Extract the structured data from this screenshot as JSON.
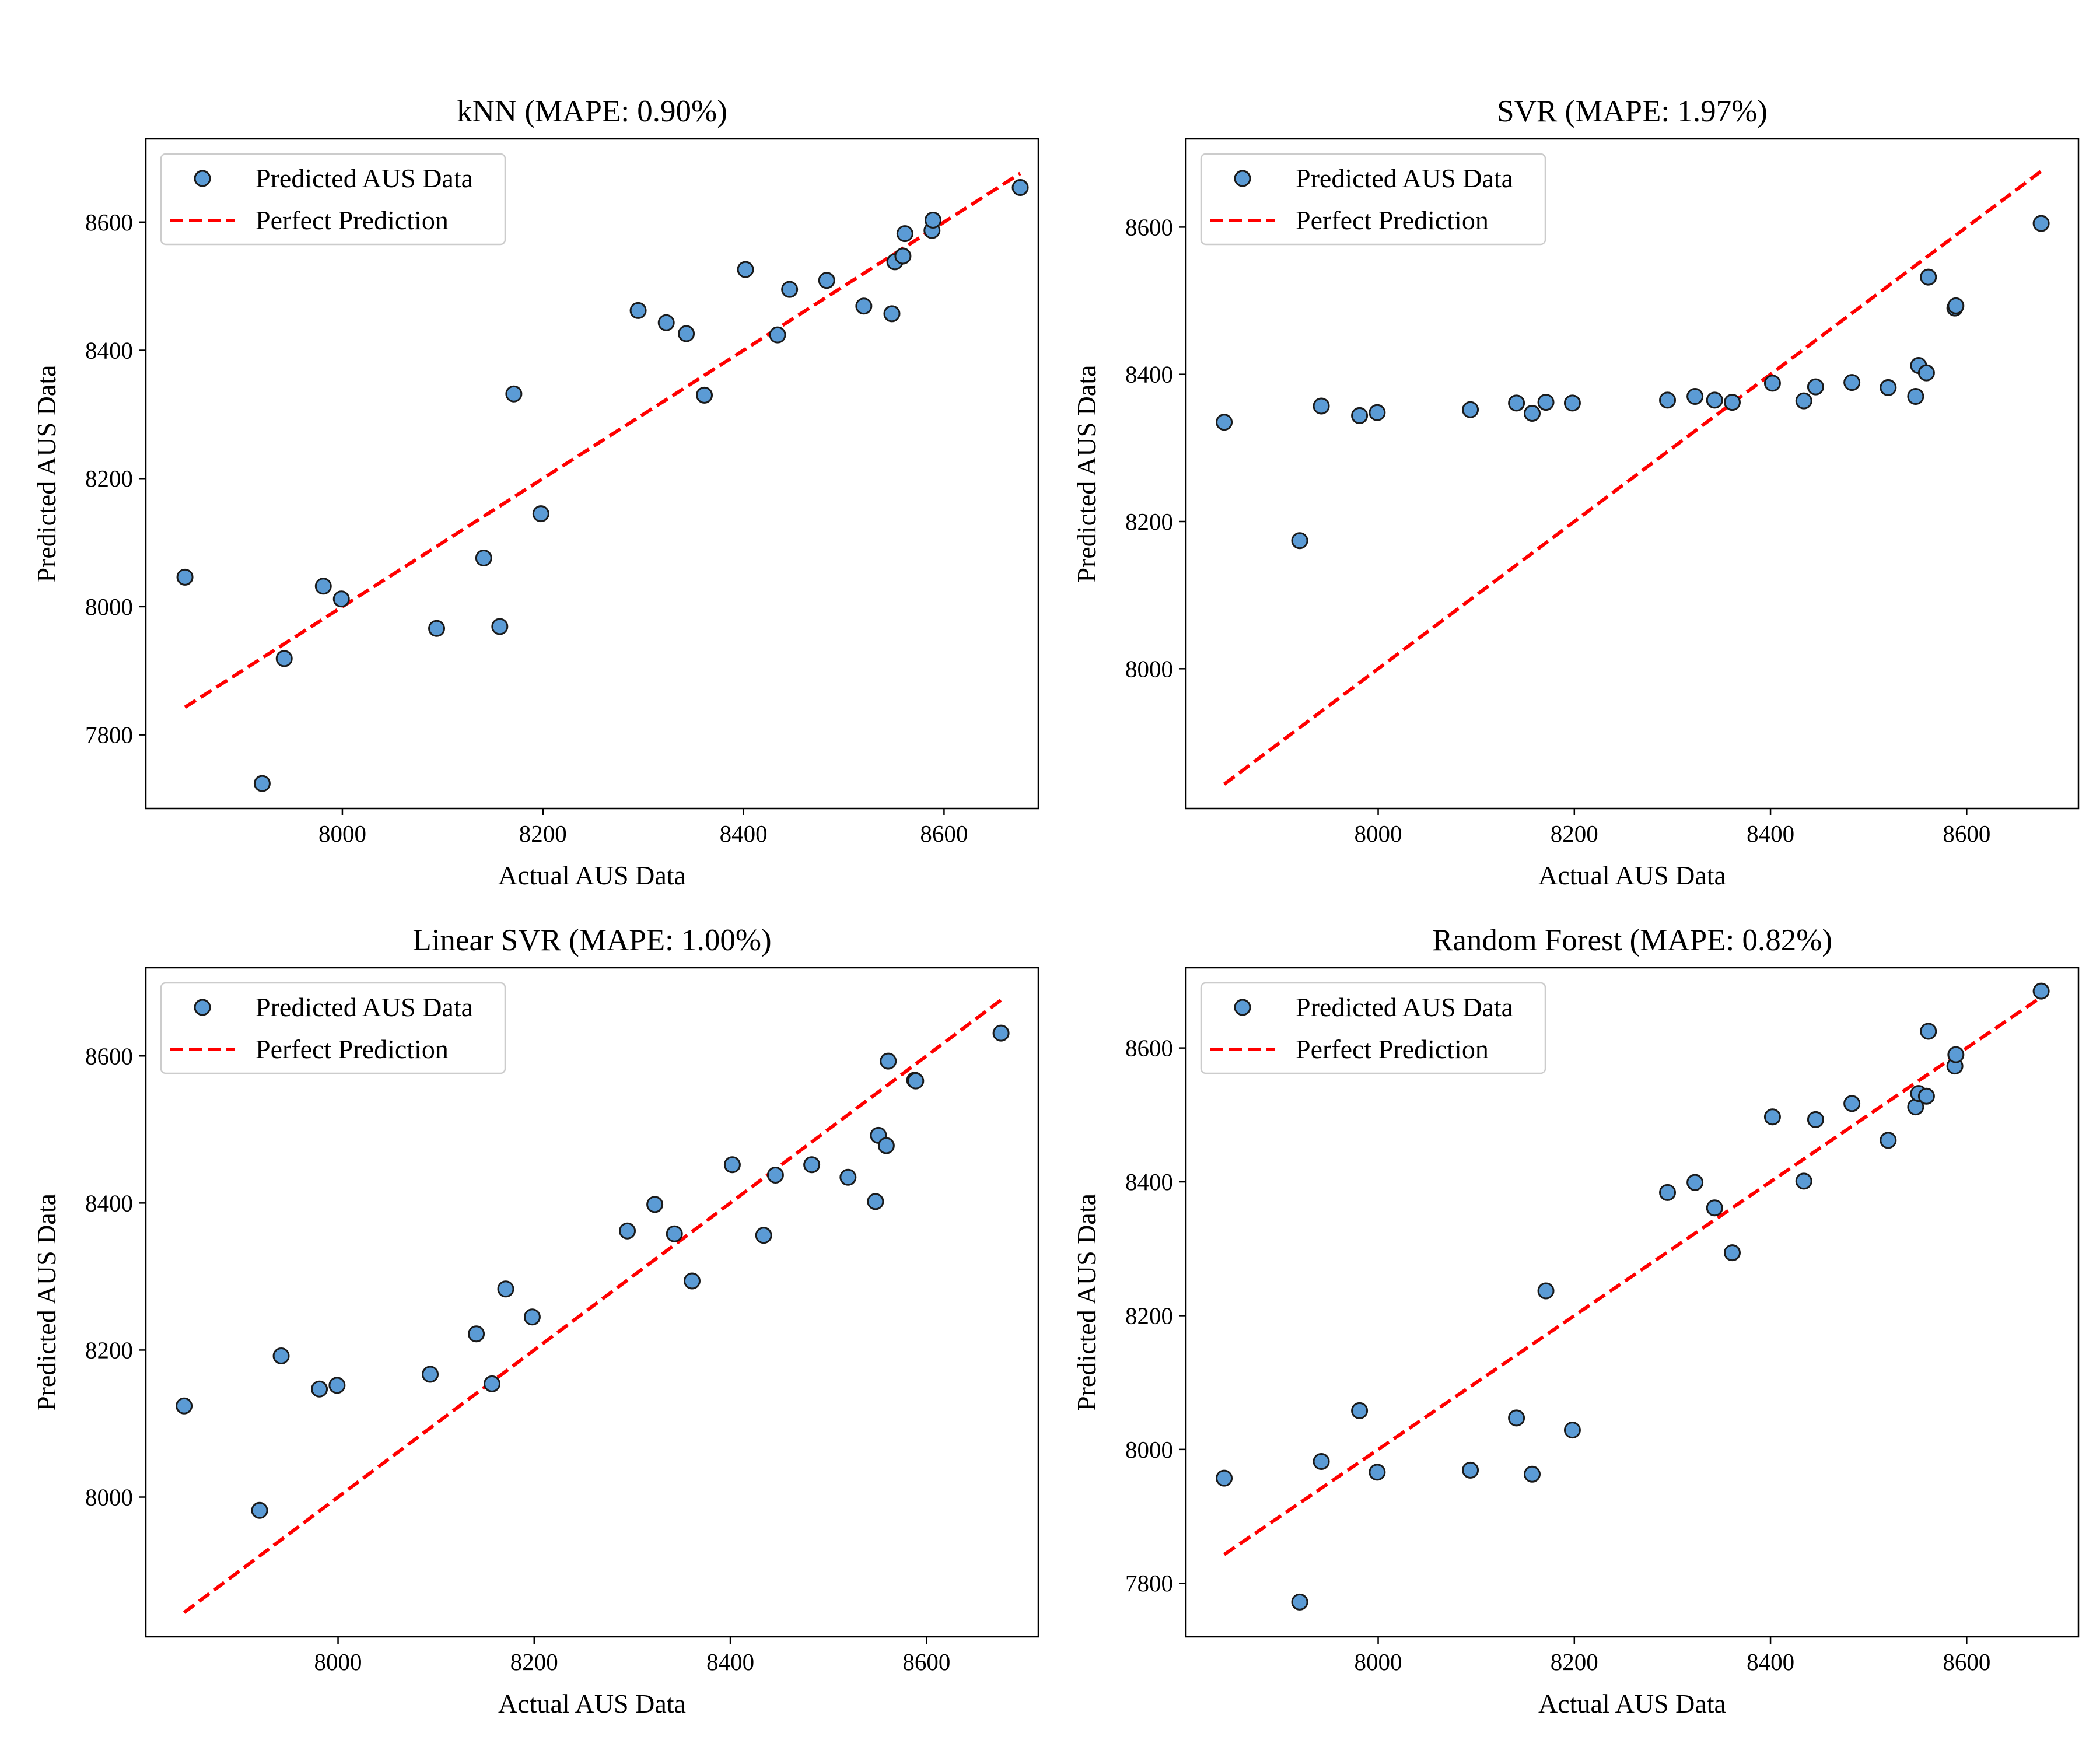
{
  "figure": {
    "point_color": "#5b9bd5",
    "point_edge_color": "#1a1a1a",
    "line_color": "#ff0000"
  },
  "chart_data": [
    {
      "type": "scatter",
      "title": "kNN (MAPE: 0.90%)",
      "xlabel": "Actual AUS Data",
      "ylabel": "Predicted AUS Data",
      "xlim": [
        7804,
        8694
      ],
      "ylim": [
        7685,
        8730
      ],
      "xticks": [
        8000,
        8200,
        8400,
        8600
      ],
      "yticks": [
        7800,
        8000,
        8200,
        8400,
        8600
      ],
      "legend": {
        "position": "top-left",
        "entries": [
          "Predicted AUS Data",
          "Perfect Prediction"
        ]
      },
      "reference_line": {
        "name": "Perfect Prediction",
        "from": [
          7843,
          7843
        ],
        "to": [
          8676,
          8676
        ]
      },
      "series": [
        {
          "name": "Predicted AUS Data",
          "points": [
            [
              7843,
              8046
            ],
            [
              7920,
              7724
            ],
            [
              7942,
              7919
            ],
            [
              7981,
              8032
            ],
            [
              7999,
              8012
            ],
            [
              8094,
              7966
            ],
            [
              8141,
              8076
            ],
            [
              8157,
              7969
            ],
            [
              8171,
              8332
            ],
            [
              8198,
              8145
            ],
            [
              8295,
              8462
            ],
            [
              8323,
              8443
            ],
            [
              8343,
              8426
            ],
            [
              8361,
              8330
            ],
            [
              8402,
              8526
            ],
            [
              8434,
              8424
            ],
            [
              8446,
              8495
            ],
            [
              8483,
              8509
            ],
            [
              8520,
              8469
            ],
            [
              8548,
              8457
            ],
            [
              8551,
              8538
            ],
            [
              8559,
              8547
            ],
            [
              8561,
              8582
            ],
            [
              8588,
              8587
            ],
            [
              8589,
              8603
            ],
            [
              8676,
              8654
            ]
          ]
        }
      ]
    },
    {
      "type": "scatter",
      "title": "SVR (MAPE: 1.97%)",
      "xlabel": "Actual AUS Data",
      "ylabel": "Predicted AUS Data",
      "xlim": [
        7804,
        8714
      ],
      "ylim": [
        7810,
        8720
      ],
      "xticks": [
        8000,
        8200,
        8400,
        8600
      ],
      "yticks": [
        8000,
        8200,
        8400,
        8600
      ],
      "legend": {
        "position": "top-left",
        "entries": [
          "Predicted AUS Data",
          "Perfect Prediction"
        ]
      },
      "reference_line": {
        "name": "Perfect Prediction",
        "from": [
          7843,
          7843
        ],
        "to": [
          8676,
          8676
        ]
      },
      "series": [
        {
          "name": "Predicted AUS Data",
          "points": [
            [
              7843,
              8335
            ],
            [
              7920,
              8174
            ],
            [
              7942,
              8357
            ],
            [
              7981,
              8344
            ],
            [
              7999,
              8348
            ],
            [
              8094,
              8352
            ],
            [
              8141,
              8361
            ],
            [
              8157,
              8347
            ],
            [
              8171,
              8362
            ],
            [
              8198,
              8361
            ],
            [
              8295,
              8365
            ],
            [
              8323,
              8370
            ],
            [
              8343,
              8365
            ],
            [
              8361,
              8362
            ],
            [
              8402,
              8388
            ],
            [
              8434,
              8364
            ],
            [
              8446,
              8383
            ],
            [
              8483,
              8389
            ],
            [
              8520,
              8382
            ],
            [
              8548,
              8370
            ],
            [
              8551,
              8412
            ],
            [
              8559,
              8402
            ],
            [
              8561,
              8532
            ],
            [
              8588,
              8490
            ],
            [
              8589,
              8493
            ],
            [
              8676,
              8605
            ]
          ]
        }
      ]
    },
    {
      "type": "scatter",
      "title": "Linear SVR (MAPE: 1.00%)",
      "xlabel": "Actual AUS Data",
      "ylabel": "Predicted AUS Data",
      "xlim": [
        7804,
        8714
      ],
      "ylim": [
        7810,
        8720
      ],
      "xticks": [
        8000,
        8200,
        8400,
        8600
      ],
      "yticks": [
        8000,
        8200,
        8400,
        8600
      ],
      "legend": {
        "position": "top-left",
        "entries": [
          "Predicted AUS Data",
          "Perfect Prediction"
        ]
      },
      "reference_line": {
        "name": "Perfect Prediction",
        "from": [
          7843,
          7843
        ],
        "to": [
          8676,
          8676
        ]
      },
      "series": [
        {
          "name": "Predicted AUS Data",
          "points": [
            [
              7843,
              8124
            ],
            [
              7920,
              7982
            ],
            [
              7942,
              8192
            ],
            [
              7981,
              8147
            ],
            [
              7999,
              8152
            ],
            [
              8094,
              8167
            ],
            [
              8141,
              8222
            ],
            [
              8157,
              8154
            ],
            [
              8171,
              8283
            ],
            [
              8198,
              8245
            ],
            [
              8295,
              8362
            ],
            [
              8323,
              8398
            ],
            [
              8343,
              8358
            ],
            [
              8361,
              8294
            ],
            [
              8402,
              8452
            ],
            [
              8434,
              8356
            ],
            [
              8446,
              8438
            ],
            [
              8483,
              8452
            ],
            [
              8520,
              8435
            ],
            [
              8548,
              8402
            ],
            [
              8551,
              8492
            ],
            [
              8559,
              8478
            ],
            [
              8561,
              8593
            ],
            [
              8588,
              8567
            ],
            [
              8589,
              8566
            ],
            [
              8676,
              8631
            ]
          ]
        }
      ]
    },
    {
      "type": "scatter",
      "title": "Random Forest (MAPE: 0.82%)",
      "xlabel": "Actual AUS Data",
      "ylabel": "Predicted AUS Data",
      "xlim": [
        7804,
        8714
      ],
      "ylim": [
        7720,
        8720
      ],
      "xticks": [
        8000,
        8200,
        8400,
        8600
      ],
      "yticks": [
        7800,
        8000,
        8200,
        8400,
        8600
      ],
      "legend": {
        "position": "top-left",
        "entries": [
          "Predicted AUS Data",
          "Perfect Prediction"
        ]
      },
      "reference_line": {
        "name": "Perfect Prediction",
        "from": [
          7843,
          7843
        ],
        "to": [
          8676,
          8676
        ]
      },
      "series": [
        {
          "name": "Predicted AUS Data",
          "points": [
            [
              7843,
              7957
            ],
            [
              7920,
              7772
            ],
            [
              7942,
              7982
            ],
            [
              7981,
              8058
            ],
            [
              7999,
              7966
            ],
            [
              8094,
              7969
            ],
            [
              8141,
              8047
            ],
            [
              8157,
              7963
            ],
            [
              8171,
              8237
            ],
            [
              8198,
              8029
            ],
            [
              8295,
              8384
            ],
            [
              8323,
              8399
            ],
            [
              8343,
              8361
            ],
            [
              8361,
              8294
            ],
            [
              8402,
              8497
            ],
            [
              8434,
              8401
            ],
            [
              8446,
              8493
            ],
            [
              8483,
              8517
            ],
            [
              8520,
              8462
            ],
            [
              8548,
              8512
            ],
            [
              8551,
              8532
            ],
            [
              8559,
              8528
            ],
            [
              8561,
              8625
            ],
            [
              8588,
              8573
            ],
            [
              8589,
              8590
            ],
            [
              8676,
              8685
            ]
          ]
        }
      ]
    }
  ]
}
